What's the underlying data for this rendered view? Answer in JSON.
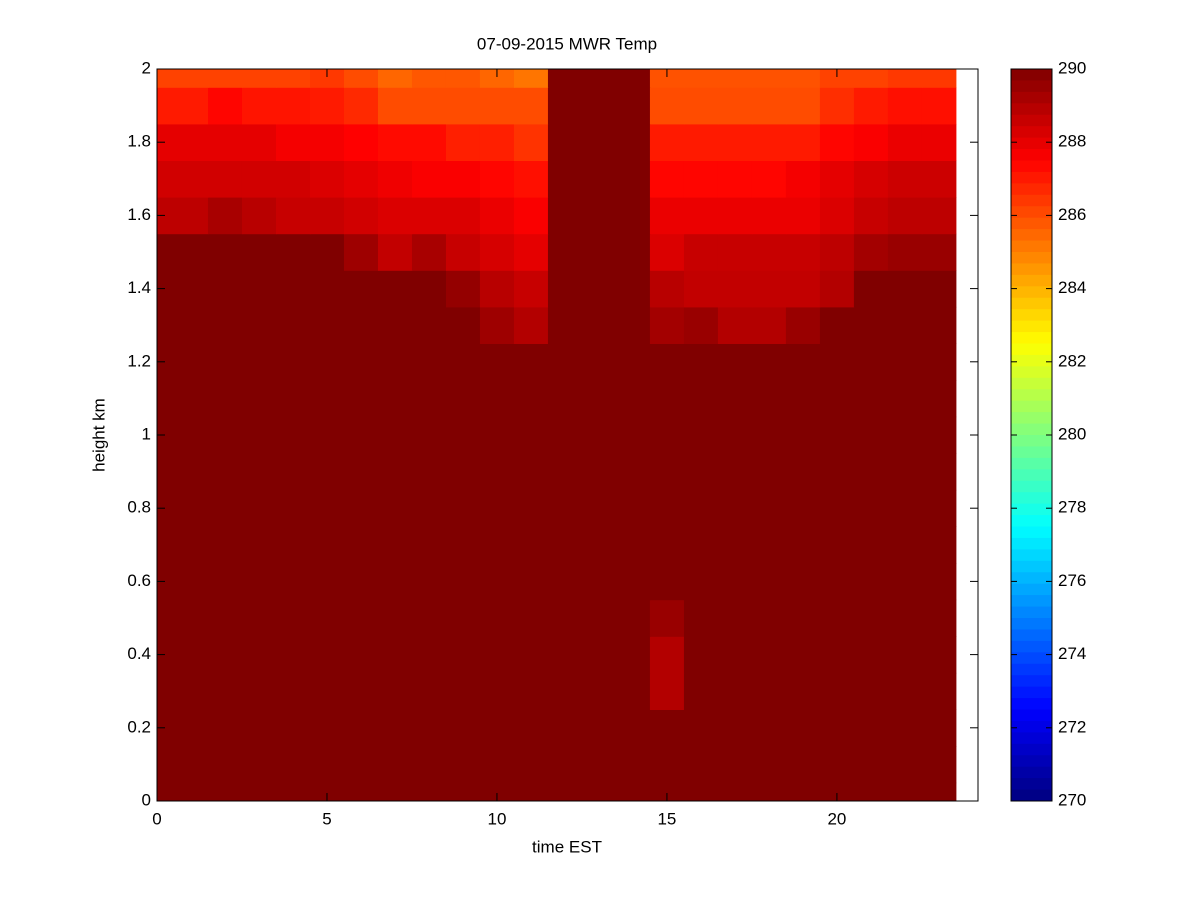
{
  "chart_data": {
    "type": "heatmap",
    "title": "07-09-2015 MWR Temp",
    "x_label": "time EST",
    "y_label": "height km",
    "colormap": "jet",
    "clim": [
      270,
      290
    ],
    "xbins": [
      0,
      1.5,
      2.5,
      3.5,
      4.5,
      5.5,
      6.5,
      7.5,
      8.5,
      9.5,
      10.5,
      11.5,
      12.5,
      13.5,
      14.5,
      15.5,
      16.5,
      17.5,
      18.5,
      19.5,
      20.5,
      21.5,
      22.5,
      23.5
    ],
    "ybins": [
      0,
      0.05,
      0.15,
      0.25,
      0.35,
      0.45,
      0.55,
      0.65,
      0.75,
      0.85,
      0.95,
      1.05,
      1.15,
      1.25,
      1.35,
      1.45,
      1.55,
      1.65,
      1.75,
      1.85,
      1.95,
      2
    ],
    "z": [
      [
        290,
        290,
        290,
        290,
        290,
        290,
        290,
        290,
        290,
        290,
        290,
        290,
        290,
        290,
        290,
        290,
        290,
        290,
        290,
        290,
        290,
        290,
        290
      ],
      [
        290,
        290,
        290,
        290,
        290,
        290,
        290,
        290,
        290,
        290,
        290,
        290,
        290,
        290,
        290,
        290,
        290,
        290,
        290,
        290,
        290,
        290,
        290
      ],
      [
        290,
        290,
        290,
        290,
        290,
        290,
        290,
        290,
        290,
        290,
        290,
        290,
        290,
        290,
        290,
        290,
        290,
        290,
        290,
        290,
        290,
        290,
        290
      ],
      [
        290,
        290,
        290,
        290,
        290,
        290,
        290,
        290,
        290,
        290,
        290,
        290,
        290,
        290,
        289,
        290,
        290,
        290,
        290,
        290,
        290,
        290,
        290
      ],
      [
        290,
        290,
        290,
        290,
        290,
        290,
        290,
        290,
        290,
        290,
        290,
        290,
        290,
        290,
        289,
        290,
        290,
        290,
        290,
        290,
        290,
        290,
        290
      ],
      [
        290,
        290,
        290,
        290,
        290,
        290,
        290,
        290,
        290,
        290,
        290,
        290,
        290,
        290,
        289.5,
        290,
        290,
        290,
        290,
        290,
        290,
        290,
        290
      ],
      [
        290,
        290,
        290,
        290,
        290,
        290,
        290,
        290,
        290,
        290,
        290,
        290,
        290,
        290,
        290,
        290,
        290,
        290,
        290,
        290,
        290,
        290,
        290
      ],
      [
        290,
        290,
        290,
        290,
        290,
        290,
        290,
        290,
        290,
        290,
        290,
        290,
        290,
        290,
        290,
        290,
        290,
        290,
        290,
        290,
        290,
        290,
        290
      ],
      [
        290,
        290,
        290,
        290,
        290,
        290,
        290,
        290,
        290,
        290,
        290,
        290,
        290,
        290,
        290,
        290,
        290,
        290,
        290,
        290,
        290,
        290,
        290
      ],
      [
        290,
        290,
        290,
        290,
        290,
        290,
        290,
        290,
        290,
        290,
        290,
        290,
        290,
        290,
        290,
        290,
        290,
        290,
        290,
        290,
        290,
        290,
        290
      ],
      [
        290,
        290,
        290,
        290,
        290,
        290,
        290,
        290,
        290,
        290,
        290,
        290,
        290,
        290,
        290,
        290,
        290,
        290,
        290,
        290,
        290,
        290,
        290
      ],
      [
        290,
        290,
        290,
        290,
        290,
        290,
        290,
        290,
        290,
        290,
        290,
        290,
        290,
        290,
        290,
        290,
        290,
        290,
        290,
        290,
        290,
        290,
        290
      ],
      [
        290,
        290,
        290,
        290,
        290,
        290,
        290,
        290,
        290,
        290,
        290,
        290,
        290,
        290,
        290,
        290,
        290,
        290,
        290,
        290,
        290,
        290,
        290
      ],
      [
        290,
        290,
        290,
        290,
        290,
        290,
        290,
        290,
        290,
        289.4,
        289,
        290,
        290,
        290,
        289.3,
        289.5,
        289,
        289,
        289.5,
        290,
        290,
        290,
        290
      ],
      [
        290,
        290,
        290,
        290,
        290,
        290,
        290,
        290,
        289.6,
        288.9,
        288.6,
        290,
        290,
        290,
        288.9,
        288.7,
        288.7,
        288.7,
        288.7,
        289,
        290,
        290,
        290
      ],
      [
        290,
        290,
        290,
        290,
        290,
        289.4,
        288.7,
        289.2,
        288.6,
        288.3,
        288,
        290,
        290,
        290,
        288.2,
        288.6,
        288.6,
        288.6,
        288.6,
        288.8,
        289.3,
        289.5,
        289.5
      ],
      [
        288.8,
        289.2,
        288.9,
        288.6,
        288.6,
        288.4,
        288.2,
        288.2,
        288.2,
        287.9,
        287.6,
        290,
        290,
        290,
        287.9,
        287.9,
        287.9,
        287.9,
        287.9,
        288.2,
        288.6,
        288.8,
        288.8
      ],
      [
        288.4,
        288.4,
        288.4,
        288.4,
        288.2,
        288,
        287.8,
        287.6,
        287.6,
        287.4,
        287.2,
        290,
        290,
        290,
        287.4,
        287.4,
        287.4,
        287.4,
        287.7,
        288,
        288.3,
        288.5,
        288.5
      ],
      [
        288,
        288,
        288,
        287.7,
        287.7,
        287.5,
        287.3,
        287.3,
        286.9,
        286.9,
        286.5,
        290,
        290,
        290,
        287,
        287,
        287,
        287,
        287,
        287.4,
        287.6,
        287.9,
        287.9
      ],
      [
        287,
        287.4,
        287.1,
        287.1,
        287,
        286.7,
        286,
        286,
        286,
        286,
        286,
        290,
        290,
        290,
        286,
        286,
        286,
        286,
        286,
        286.6,
        287,
        287.2,
        287.2
      ],
      [
        286.2,
        286.2,
        286.2,
        286.2,
        286.4,
        286,
        285.5,
        285.8,
        285.8,
        285.5,
        285.2,
        290,
        290,
        290,
        285.9,
        285.9,
        285.9,
        285.9,
        285.9,
        286.2,
        286.2,
        286.4,
        286.4
      ]
    ],
    "xlim": [
      0,
      24.15
    ],
    "xticks": [
      0,
      5,
      10,
      15,
      20
    ],
    "ylim": [
      0,
      2
    ],
    "yticks": [
      0,
      0.2,
      0.4,
      0.6,
      0.8,
      1,
      1.2,
      1.4,
      1.6,
      1.8,
      2
    ],
    "colorbar_ticks": [
      270,
      272,
      274,
      276,
      278,
      280,
      282,
      284,
      286,
      288,
      290
    ]
  }
}
